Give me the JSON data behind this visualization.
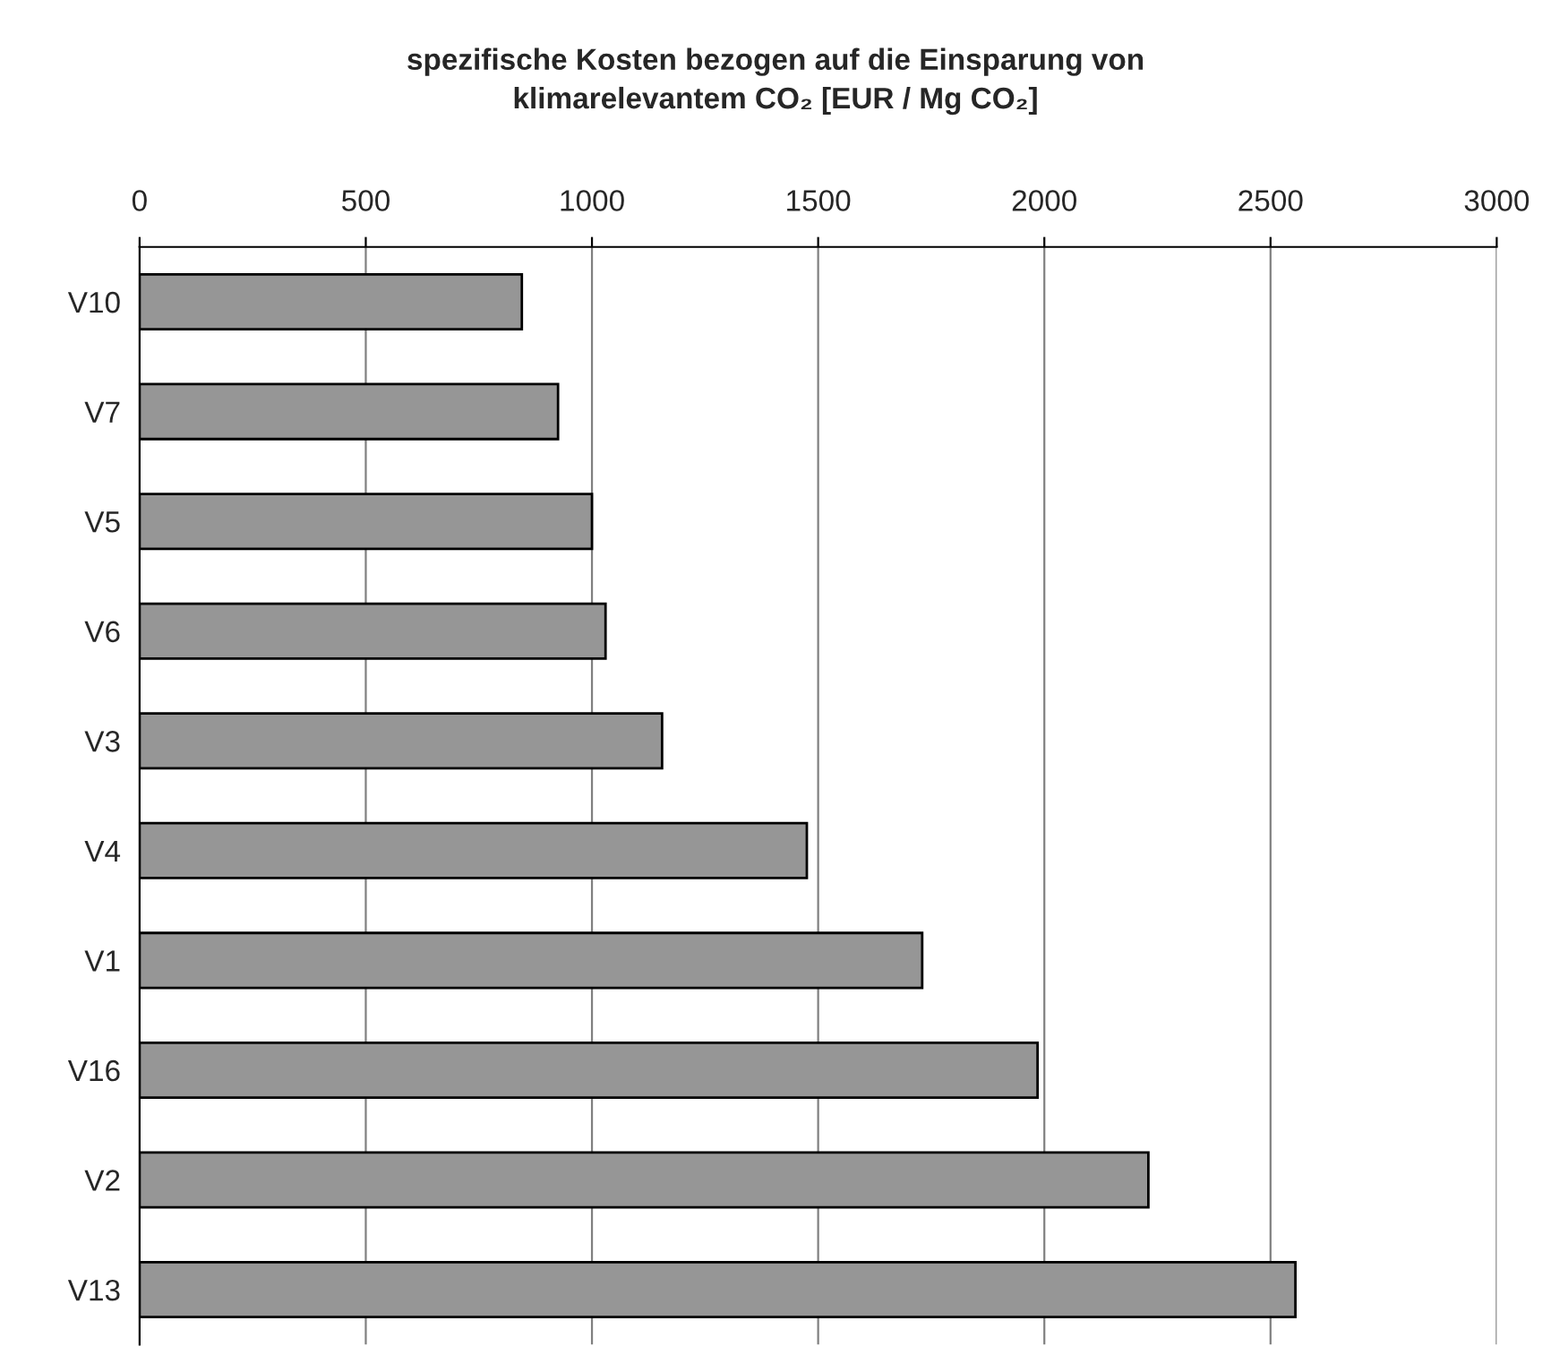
{
  "chart_data": {
    "type": "bar",
    "orientation": "horizontal",
    "title": "spezifische Kosten bezogen auf die Einsparung von\nklimarelevantem CO₂ [EUR / Mg CO₂]",
    "categories": [
      "V10",
      "V7",
      "V5",
      "V6",
      "V3",
      "V4",
      "V1",
      "V16",
      "V2",
      "V13"
    ],
    "values": [
      845,
      925,
      1000,
      1030,
      1155,
      1475,
      1730,
      1985,
      2230,
      2555
    ],
    "color": "#969696",
    "xlim": [
      0,
      3000
    ],
    "xticks": [
      0,
      500,
      1000,
      1500,
      2000,
      2500,
      3000
    ],
    "grid": "x",
    "legend": false
  }
}
